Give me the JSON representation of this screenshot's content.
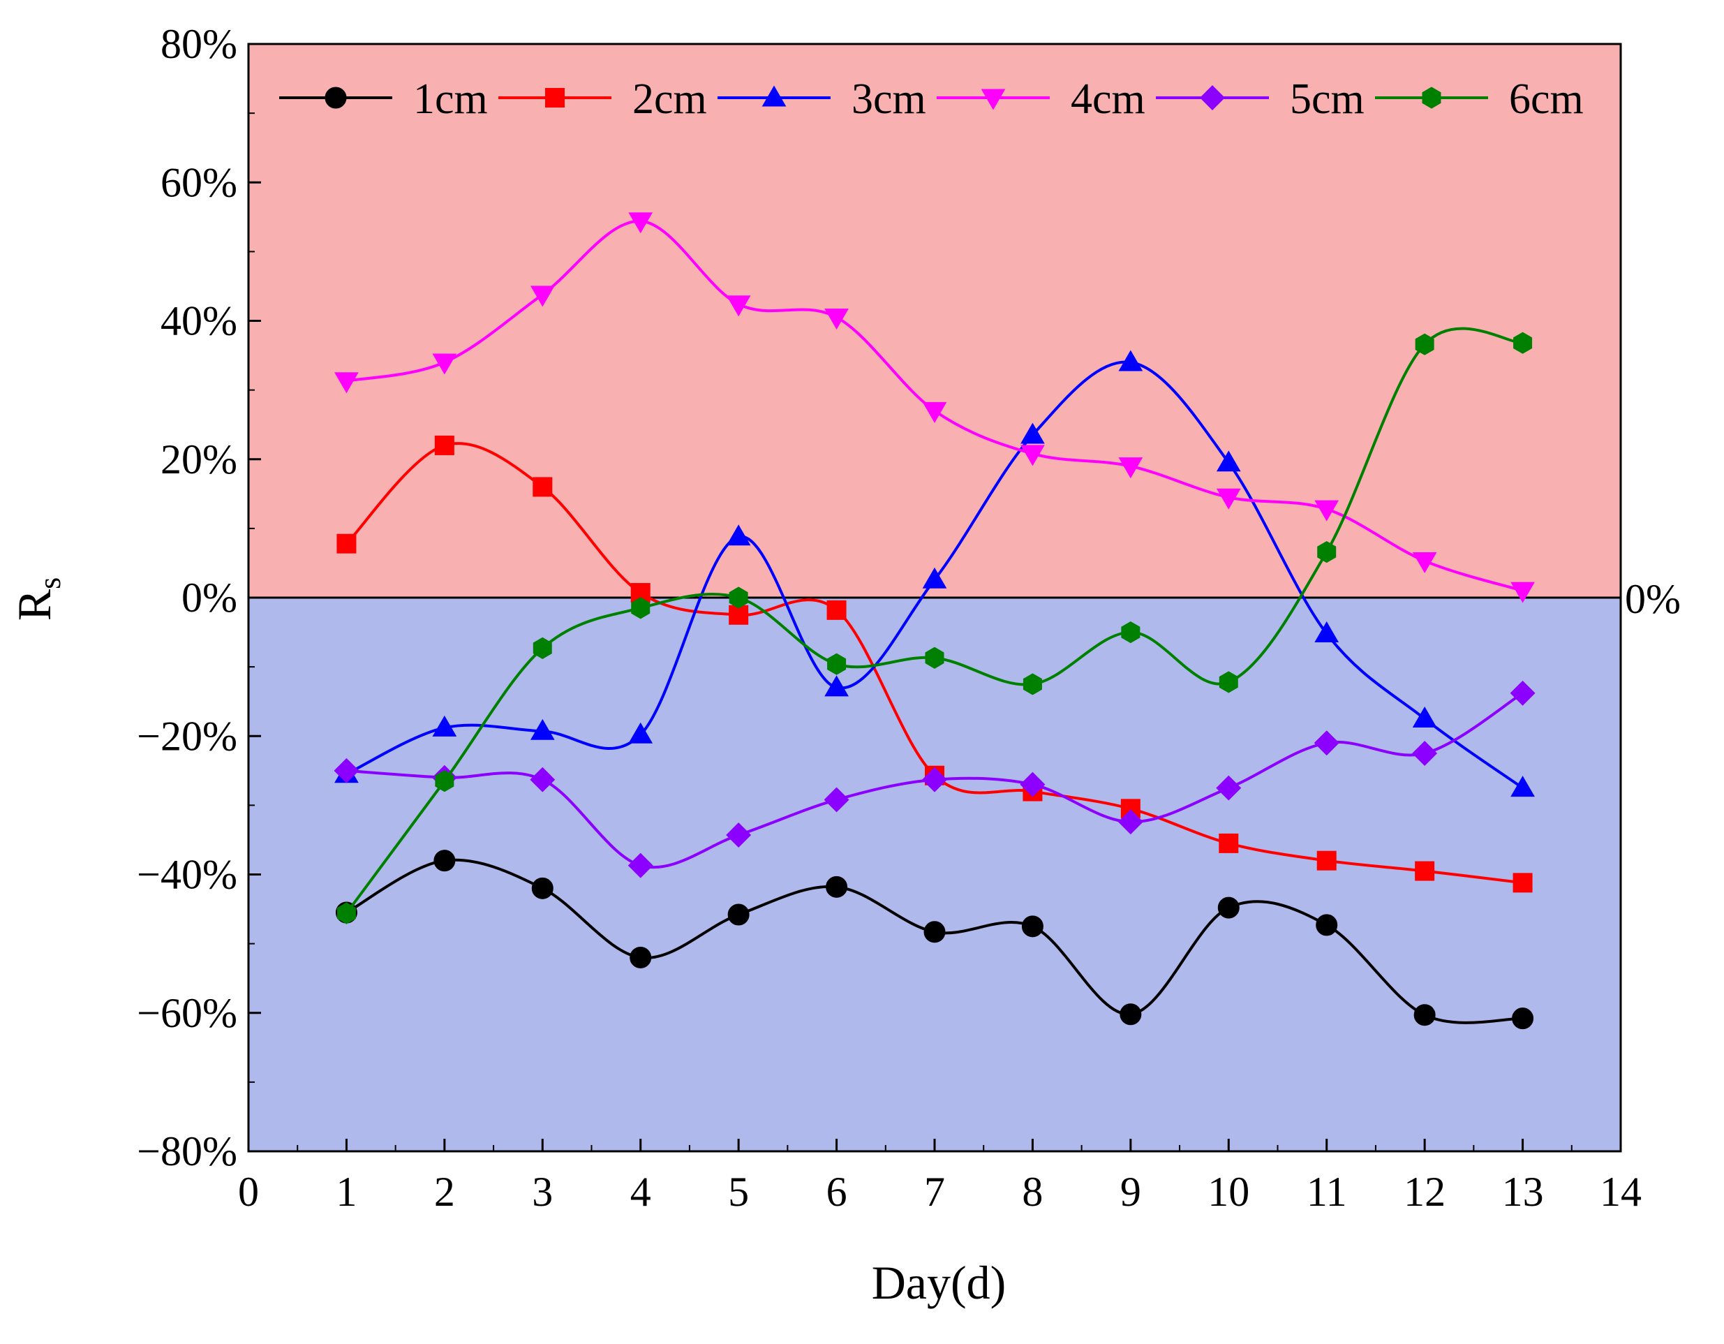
{
  "chart_data": {
    "type": "line",
    "smooth": true,
    "title": "",
    "xlabel": "Day(d)",
    "ylabel": {
      "main": "R",
      "sub": "s"
    },
    "xlim": [
      0,
      14
    ],
    "ylim": [
      -80,
      80
    ],
    "x_ticks": [
      "0",
      "1",
      "2",
      "3",
      "4",
      "5",
      "6",
      "7",
      "8",
      "9",
      "10",
      "11",
      "12",
      "13",
      "14"
    ],
    "y_ticks": [
      {
        "value": 80,
        "label": "80%"
      },
      {
        "value": 60,
        "label": "60%"
      },
      {
        "value": 40,
        "label": "40%"
      },
      {
        "value": 20,
        "label": "20%"
      },
      {
        "value": 0,
        "label": "0%"
      },
      {
        "value": -20,
        "label": "−20%"
      },
      {
        "value": -40,
        "label": "−40%"
      },
      {
        "value": -60,
        "label": "−60%"
      },
      {
        "value": -80,
        "label": "−80%"
      }
    ],
    "zero_line_label": "0%",
    "regions": {
      "positive_color": "#f9b0b0",
      "negative_color": "#b0b9ec"
    },
    "legend_position": "top",
    "x": [
      1,
      2,
      3,
      4,
      5,
      6,
      7,
      8,
      9,
      10,
      11,
      12,
      13
    ],
    "series": [
      {
        "name": "1cm",
        "color": "#000000",
        "marker": "circle",
        "values": [
          -45.5,
          -38,
          -42,
          -52,
          -45.8,
          -41.8,
          -48.3,
          -47.5,
          -60.2,
          -44.8,
          -47.3,
          -60.3,
          -60.8
        ]
      },
      {
        "name": "2cm",
        "color": "#ff0000",
        "marker": "square",
        "values": [
          7.8,
          22,
          16,
          0.7,
          -2.5,
          -1.8,
          -25.7,
          -28,
          -30.5,
          -35.5,
          -38,
          -39.5,
          -41.2
        ]
      },
      {
        "name": "3cm",
        "color": "#0000ff",
        "marker": "triangle-up",
        "values": [
          -25.5,
          -18.8,
          -19.3,
          -19.8,
          8.8,
          -13,
          2.6,
          23.5,
          34,
          19.5,
          -5.2,
          -17.5,
          -27.5
        ]
      },
      {
        "name": "4cm",
        "color": "#ff00ff",
        "marker": "triangle-down",
        "values": [
          31.3,
          34,
          43.8,
          54.4,
          42.4,
          40.5,
          27,
          20.8,
          19,
          14.5,
          12.8,
          5.3,
          1
        ]
      },
      {
        "name": "5cm",
        "color": "#8b00ff",
        "marker": "diamond",
        "values": [
          -25,
          -26,
          -26.3,
          -38.7,
          -34.3,
          -29.2,
          -26.3,
          -27,
          -32.4,
          -27.5,
          -21,
          -22.5,
          -13.8
        ]
      },
      {
        "name": "6cm",
        "color": "#008000",
        "marker": "hexagon",
        "values": [
          -45.6,
          -26.5,
          -7.3,
          -1.5,
          0,
          -9.6,
          -8.7,
          -12.5,
          -5,
          -12.2,
          6.6,
          36.6,
          36.8
        ]
      }
    ]
  }
}
